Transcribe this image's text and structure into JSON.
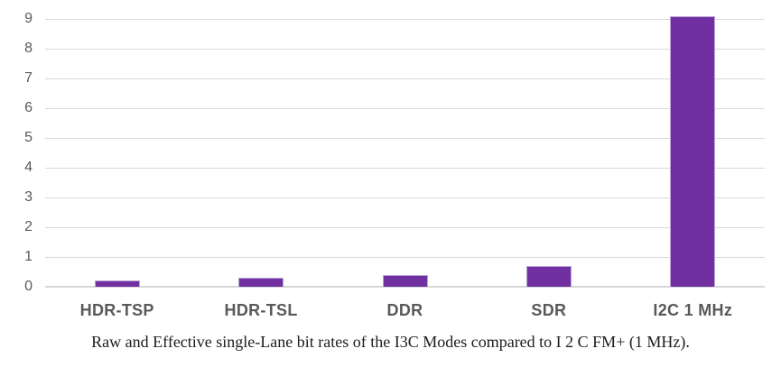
{
  "chart_data": {
    "type": "bar",
    "categories": [
      "HDR-TSP",
      "HDR-TSL",
      "DDR",
      "SDR",
      "I2C 1 MHz"
    ],
    "values": [
      0.2,
      0.3,
      0.4,
      0.7,
      9.1
    ],
    "title": "",
    "xlabel": "",
    "ylabel": "",
    "ylim": [
      0,
      9
    ],
    "yticks": [
      0,
      1,
      2,
      3,
      4,
      5,
      6,
      7,
      8,
      9
    ],
    "grid": true,
    "legend_position": "none",
    "bar_color": "#7030a0",
    "bar_border_color": "#bfa3da",
    "gridline_color": "#d9d9d9",
    "axis_label_color": "#595959"
  },
  "caption": "Raw and Effective single-Lane bit rates of the I3C Modes compared to I 2 C FM+ (1 MHz)."
}
